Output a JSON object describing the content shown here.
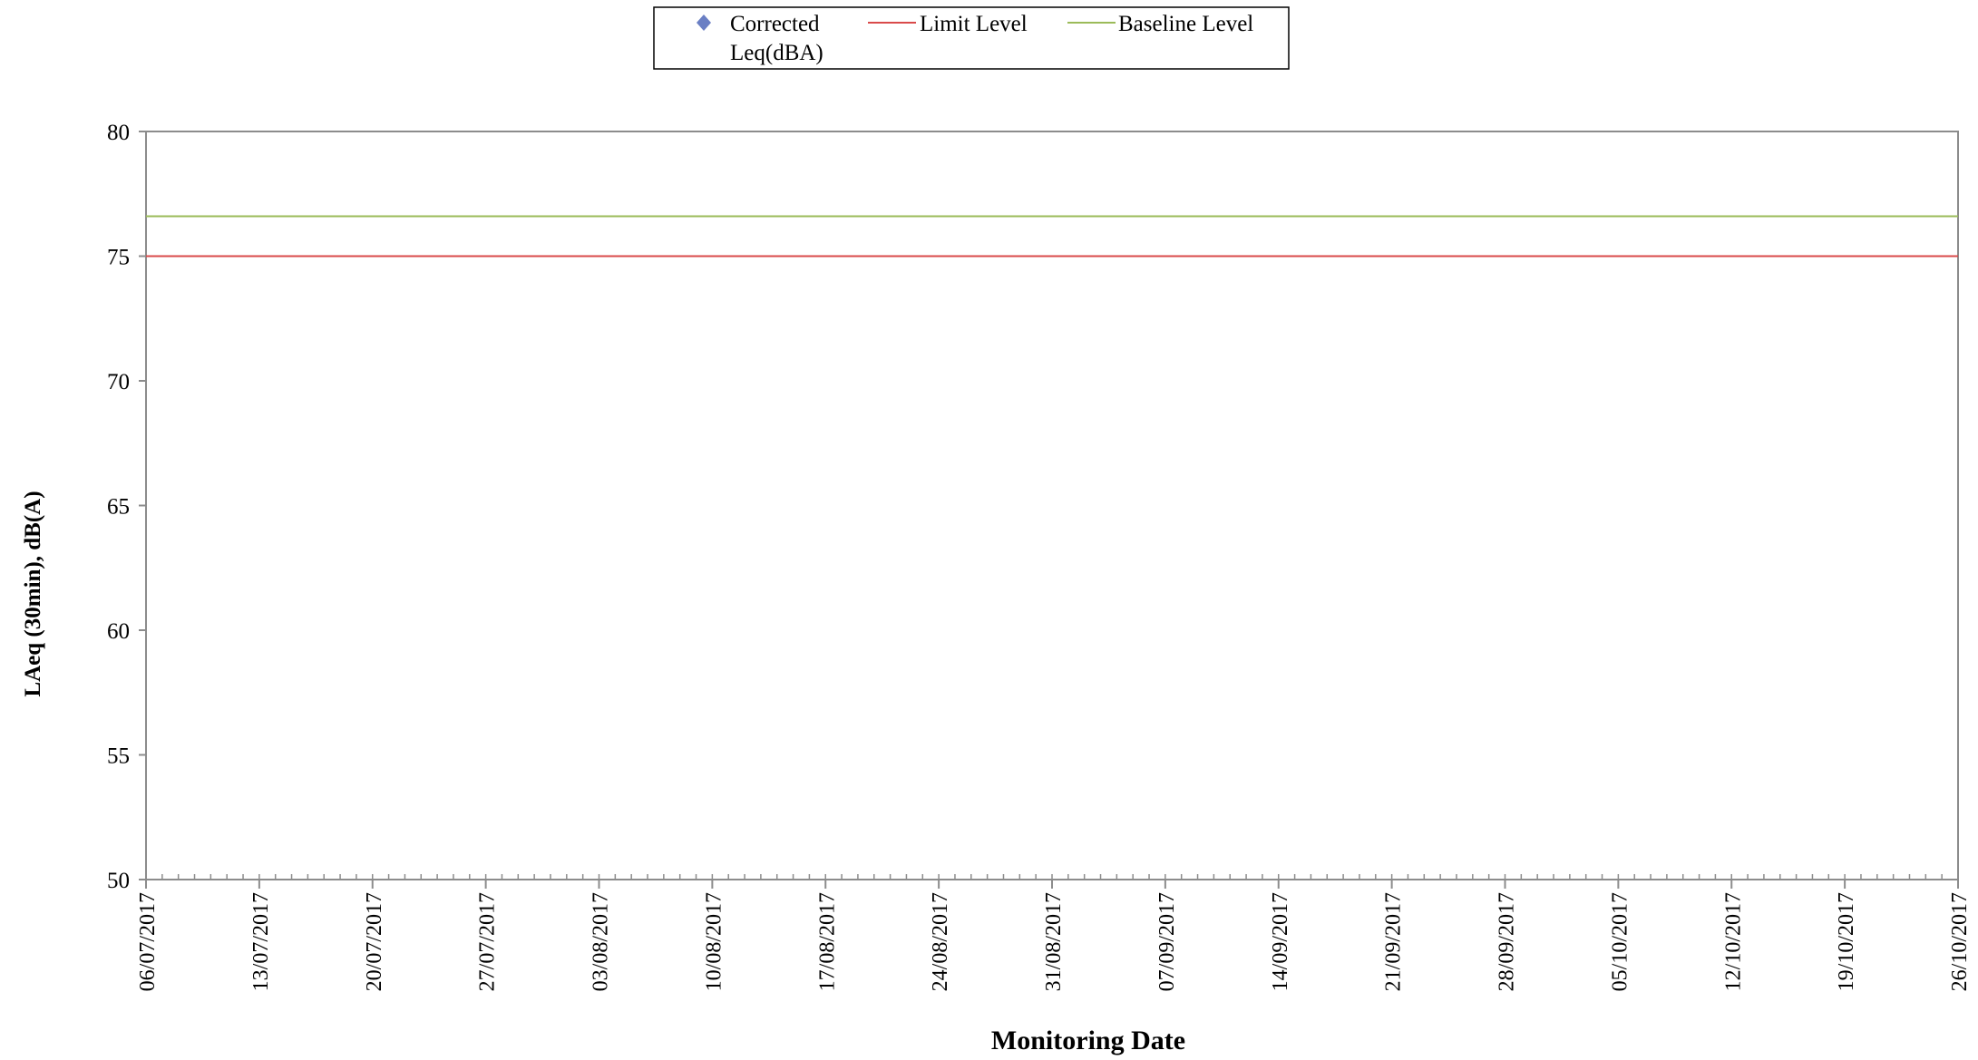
{
  "chart_data": {
    "type": "line",
    "title": "",
    "xlabel": "Monitoring Date",
    "ylabel": "LAeq (30min), dB(A)",
    "ylim": [
      50,
      80
    ],
    "yticks": [
      50,
      55,
      60,
      65,
      70,
      75,
      80
    ],
    "xlim": [
      "06/07/2017",
      "26/10/2017"
    ],
    "xticks": [
      "06/07/2017",
      "13/07/2017",
      "20/07/2017",
      "27/07/2017",
      "03/08/2017",
      "10/08/2017",
      "17/08/2017",
      "24/08/2017",
      "31/08/2017",
      "07/09/2017",
      "14/09/2017",
      "21/09/2017",
      "28/09/2017",
      "05/10/2017",
      "12/10/2017",
      "19/10/2017",
      "26/10/2017"
    ],
    "grid": false,
    "legend_position": "top-center",
    "series": [
      {
        "name": "Corrected Leq(dBA)",
        "name_lines": [
          "Corrected",
          "Leq(dBA)"
        ],
        "marker": "diamond",
        "color": "#6a7fc4",
        "points": []
      },
      {
        "name": "Limit Level",
        "color": "#d94a4a",
        "x": [
          "06/07/2017",
          "26/10/2017"
        ],
        "values": [
          75,
          75
        ]
      },
      {
        "name": "Baseline Level",
        "color": "#9bbb59",
        "x": [
          "06/07/2017",
          "26/10/2017"
        ],
        "values": [
          76.6,
          76.6
        ]
      }
    ]
  }
}
